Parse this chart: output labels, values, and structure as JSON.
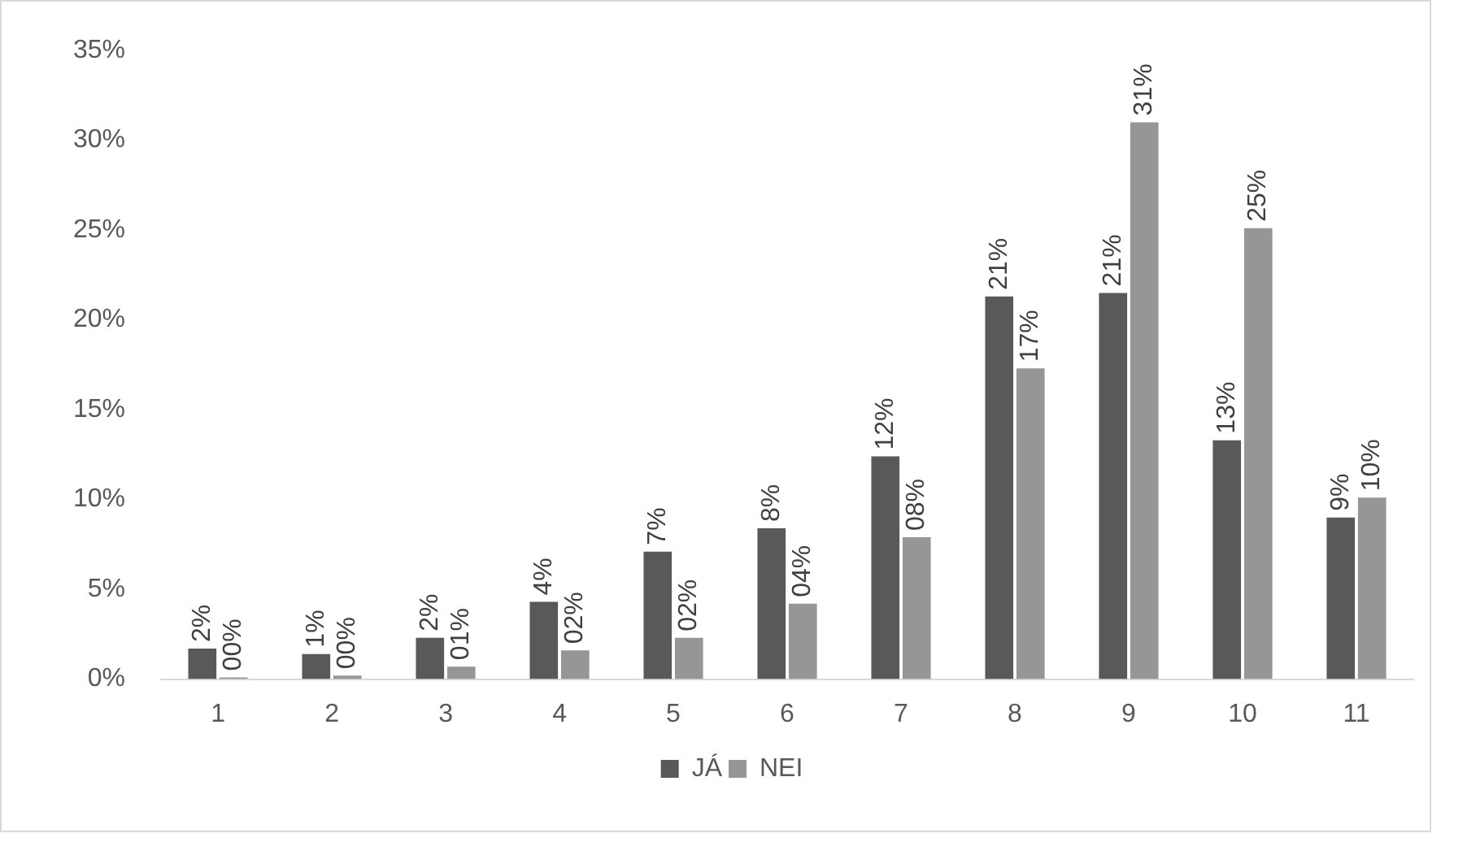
{
  "chart_data": {
    "type": "bar",
    "categories": [
      "1",
      "2",
      "3",
      "4",
      "5",
      "6",
      "7",
      "8",
      "9",
      "10",
      "11"
    ],
    "series": [
      {
        "name": "JÁ",
        "color": "#595959",
        "values": [
          1.7,
          1.4,
          2.3,
          4.3,
          7.1,
          8.4,
          12.4,
          21.3,
          21.5,
          13.3,
          9.0
        ],
        "value_labels": [
          "2%",
          "1%",
          "2%",
          "4%",
          "7%",
          "8%",
          "12%",
          "21%",
          "21%",
          "13%",
          "9%"
        ]
      },
      {
        "name": "NEI",
        "color": "#969696",
        "values": [
          0.1,
          0.2,
          0.7,
          1.6,
          2.3,
          4.2,
          7.9,
          17.3,
          31.0,
          25.1,
          10.1
        ],
        "value_labels": [
          "00%",
          "00%",
          "01%",
          "02%",
          "02%",
          "04%",
          "08%",
          "17%",
          "31%",
          "25%",
          "10%"
        ]
      }
    ],
    "ylim": [
      0,
      35
    ],
    "yticks": [
      {
        "value": 0,
        "label": "0%"
      },
      {
        "value": 5,
        "label": "5%"
      },
      {
        "value": 10,
        "label": "10%"
      },
      {
        "value": 15,
        "label": "15%"
      },
      {
        "value": 20,
        "label": "20%"
      },
      {
        "value": 25,
        "label": "25%"
      },
      {
        "value": 30,
        "label": "30%"
      },
      {
        "value": 35,
        "label": "35%"
      }
    ],
    "grid": false,
    "legend": "bottom"
  }
}
